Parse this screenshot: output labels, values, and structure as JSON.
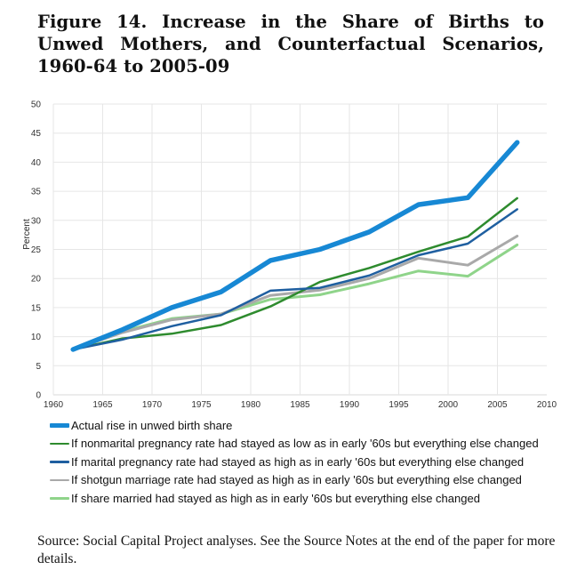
{
  "figure": {
    "title": "Figure 14. Increase in the Share of Births to Unwed Mothers, and Counterfactual Scenarios, 1960-64 to 2005-09",
    "source": "Source: Social Capital Project analyses. See the Source Notes at the end of the paper for more details."
  },
  "chart_data": {
    "type": "line",
    "title": "Figure 14. Increase in the Share of Births to Unwed Mothers, and Counterfactual Scenarios, 1960-64 to 2005-09",
    "xlabel": "",
    "ylabel": "Percent",
    "xlim": [
      1960,
      2010
    ],
    "ylim": [
      0,
      50
    ],
    "xticks": [
      1960,
      1965,
      1970,
      1975,
      1980,
      1985,
      1990,
      1995,
      2000,
      2005,
      2010
    ],
    "yticks": [
      0,
      5,
      10,
      15,
      20,
      25,
      30,
      35,
      40,
      45,
      50
    ],
    "grid": true,
    "legend_position": "bottom",
    "x": [
      1962,
      1967,
      1972,
      1977,
      1982,
      1987,
      1992,
      1997,
      2002,
      2007
    ],
    "series": [
      {
        "name": "Actual rise in unwed birth share",
        "color": "#1788d4",
        "values": [
          7.8,
          11.2,
          15.0,
          17.7,
          23.1,
          25.0,
          28.0,
          32.7,
          33.9,
          43.4
        ]
      },
      {
        "name": "If nonmarital pregnancy rate had stayed as low as in early '60s but everything else changed",
        "color": "#2e8b2e",
        "values": [
          7.8,
          9.7,
          10.5,
          12.0,
          15.2,
          19.4,
          21.8,
          24.6,
          27.2,
          33.8
        ]
      },
      {
        "name": "If marital pregnancy rate had stayed as high as in early '60s but everything else changed",
        "color": "#1f5fa0",
        "values": [
          7.8,
          9.5,
          11.8,
          13.7,
          17.9,
          18.4,
          20.5,
          24.0,
          26.0,
          31.9
        ]
      },
      {
        "name": "If shotgun marriage rate had stayed as high as in early '60s but everything else changed",
        "color": "#a9a9a9",
        "values": [
          7.8,
          10.7,
          12.9,
          13.9,
          17.1,
          18.0,
          20.0,
          23.5,
          22.3,
          27.3
        ]
      },
      {
        "name": "If share married had stayed as high as in early '60s but everything else changed",
        "color": "#8fd48a",
        "values": [
          7.8,
          10.9,
          13.1,
          13.9,
          16.4,
          17.2,
          19.1,
          21.3,
          20.4,
          25.8
        ]
      }
    ]
  }
}
